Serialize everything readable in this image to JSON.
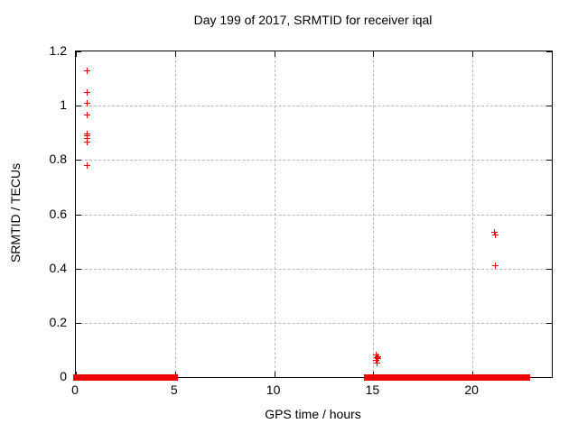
{
  "colors": {
    "background": "#ffffff",
    "border": "#000000",
    "grid": "#b8b8b8",
    "marker": "#ee0000"
  },
  "chart_data": {
    "type": "scatter",
    "title": "Day 199 of 2017, SRMTID for receiver iqal",
    "xlabel": "GPS time / hours",
    "ylabel": "SRMTID / TECUs",
    "xlim": [
      0,
      24
    ],
    "ylim": [
      0,
      1.2
    ],
    "x_ticks": [
      0,
      5,
      10,
      15,
      20
    ],
    "x_tick_labels": [
      "0",
      "5",
      "10",
      "15",
      "20"
    ],
    "y_ticks": [
      0,
      0.2,
      0.4,
      0.6,
      0.8,
      1,
      1.2
    ],
    "y_tick_labels": [
      "0",
      "0.2",
      "0.4",
      "0.6",
      "0.8",
      "1",
      "1.2"
    ],
    "grid": true,
    "legend": "none",
    "marker": "plus",
    "points": [
      [
        0.57,
        1.13
      ],
      [
        0.57,
        1.05
      ],
      [
        0.57,
        1.01
      ],
      [
        0.57,
        0.965
      ],
      [
        0.55,
        0.895
      ],
      [
        0.58,
        0.89
      ],
      [
        0.56,
        0.88
      ],
      [
        0.57,
        0.865
      ],
      [
        0.57,
        0.78
      ],
      [
        15.15,
        0.08
      ],
      [
        15.22,
        0.075
      ],
      [
        15.18,
        0.07
      ],
      [
        15.25,
        0.068
      ],
      [
        15.15,
        0.06
      ],
      [
        15.2,
        0.05
      ],
      [
        21.1,
        0.535
      ],
      [
        21.17,
        0.525
      ],
      [
        21.17,
        0.41
      ]
    ],
    "zero_value_bands_hours": [
      [
        0.0,
        5.0
      ],
      [
        14.65,
        14.95
      ],
      [
        15.07,
        21.4
      ],
      [
        21.62,
        22.75
      ]
    ]
  }
}
